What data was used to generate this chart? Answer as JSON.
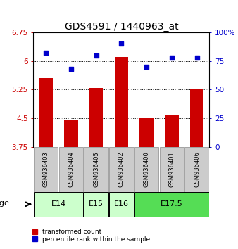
{
  "title": "GDS4591 / 1440963_at",
  "samples": [
    "GSM936403",
    "GSM936404",
    "GSM936405",
    "GSM936402",
    "GSM936400",
    "GSM936401",
    "GSM936406"
  ],
  "red_values": [
    5.55,
    4.45,
    5.3,
    6.1,
    4.5,
    4.6,
    5.25
  ],
  "blue_values": [
    82,
    68,
    80,
    90,
    70,
    78,
    78
  ],
  "ylim_left": [
    3.75,
    6.75
  ],
  "ylim_right": [
    0,
    100
  ],
  "yticks_left": [
    3.75,
    4.5,
    5.25,
    6.0,
    6.75
  ],
  "yticks_right": [
    0,
    25,
    50,
    75,
    100
  ],
  "ytick_labels_left": [
    "3.75",
    "4.5",
    "5.25",
    "6",
    "6.75"
  ],
  "ytick_labels_right": [
    "0",
    "25",
    "50",
    "75",
    "100%"
  ],
  "dotted_lines": [
    4.5,
    5.25,
    6.0
  ],
  "bar_color": "#cc0000",
  "dot_color": "#0000cc",
  "age_groups": [
    {
      "label": "E14",
      "start": 0,
      "end": 1,
      "color": "#ccffcc"
    },
    {
      "label": "E15",
      "start": 2,
      "end": 2,
      "color": "#ccffcc"
    },
    {
      "label": "E16",
      "start": 3,
      "end": 3,
      "color": "#ccffcc"
    },
    {
      "label": "E17.5",
      "start": 4,
      "end": 6,
      "color": "#55dd55"
    }
  ],
  "legend_red": "transformed count",
  "legend_blue": "percentile rank within the sample",
  "age_label": "age",
  "title_fontsize": 10,
  "tick_fontsize": 7.5,
  "sample_fontsize": 6,
  "age_fontsize": 8,
  "bar_bottom": 3.75,
  "bar_color_hex": "#bb0000",
  "sample_bg": "#cccccc"
}
